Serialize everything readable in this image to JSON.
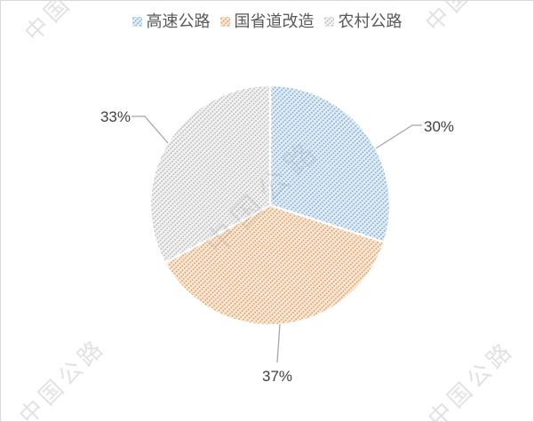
{
  "watermark": {
    "text": "中国公路",
    "color": "#e2e2e2"
  },
  "legend": {
    "position": "top",
    "items": [
      {
        "label": "高速公路"
      },
      {
        "label": "国省道改造"
      },
      {
        "label": "农村公路"
      }
    ]
  },
  "chart_data": {
    "type": "pie",
    "title": "",
    "legend_position": "top",
    "direction": "clockwise",
    "start_angle_deg": 0,
    "fill_style": "diagonal-hatch-pattern",
    "categories": [
      "高速公路",
      "国省道改造",
      "农村公路"
    ],
    "values": [
      30,
      37,
      33
    ],
    "data_labels": [
      "30%",
      "37%",
      "33%"
    ],
    "series": [
      {
        "name": "高速公路",
        "value": 30,
        "label": "30%",
        "accent": "#5B9BD5",
        "pattern_fg": "#79a7cd",
        "pattern_bg": "#e3eef8"
      },
      {
        "name": "国省道改造",
        "value": 37,
        "label": "37%",
        "accent": "#ED7D31",
        "pattern_fg": "#d9975f",
        "pattern_bg": "#fbead7"
      },
      {
        "name": "农村公路",
        "value": 33,
        "label": "33%",
        "accent": "#A5A5A5",
        "pattern_fg": "#b3b3b3",
        "pattern_bg": "#f3f3f3"
      }
    ]
  }
}
